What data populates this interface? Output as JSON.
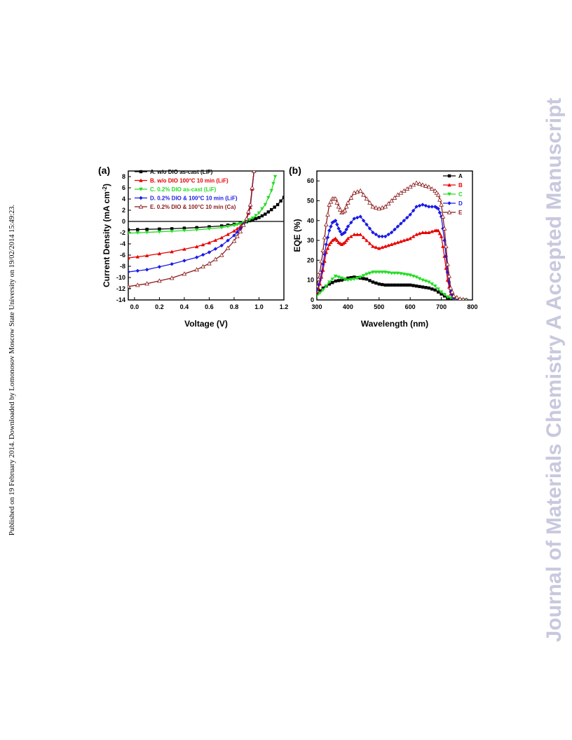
{
  "sidebar_left": "Published on 19 February 2014. Downloaded by Lomonosov Moscow State University on 19/02/2014 15:49:23.",
  "sidebar_right": "Journal of Materials Chemistry A Accepted Manuscript",
  "colors": {
    "A": "#000000",
    "B": "#e60000",
    "C": "#22dd22",
    "D": "#1a1ae6",
    "E": "#8b1a1a"
  },
  "chart_data": [
    {
      "panel_label": "(a)",
      "type": "line",
      "xlabel": "Voltage (V)",
      "ylabel": "Current Density (mA cm",
      "ylabel_sup": "-2",
      "ylabel_end": ")",
      "xlim": [
        -0.05,
        1.2
      ],
      "ylim": [
        -14,
        9
      ],
      "xticks": [
        "0.0",
        "0.2",
        "0.4",
        "0.6",
        "0.8",
        "1.0",
        "1.2"
      ],
      "xtick_values": [
        0,
        0.2,
        0.4,
        0.6,
        0.8,
        1.0,
        1.2
      ],
      "yticks": [
        "-14",
        "-12",
        "-10",
        "-8",
        "-6",
        "-4",
        "-2",
        "0",
        "2",
        "4",
        "6",
        "8"
      ],
      "ytick_values": [
        -14,
        -12,
        -10,
        -8,
        -6,
        -4,
        -2,
        0,
        2,
        4,
        6,
        8
      ],
      "legend_position": "top-right",
      "series": [
        {
          "name": "A. w/o DIO as-cast (LiF)",
          "key": "A",
          "x": [
            -0.05,
            0.1,
            0.3,
            0.5,
            0.7,
            0.8,
            0.9,
            0.95,
            1.0,
            1.05,
            1.1,
            1.15,
            1.2
          ],
          "y": [
            -1.5,
            -1.4,
            -1.3,
            -1.1,
            -0.8,
            -0.5,
            -0.05,
            0.3,
            0.7,
            1.3,
            2.1,
            3.0,
            4.3
          ]
        },
        {
          "name": "B. w/o DIO 100°C 10 min (LiF)",
          "key": "B",
          "x": [
            -0.05,
            0.1,
            0.3,
            0.5,
            0.6,
            0.7,
            0.8,
            0.85,
            0.9,
            0.93,
            0.96
          ],
          "y": [
            -6.5,
            -6.1,
            -5.4,
            -4.5,
            -3.8,
            -2.9,
            -1.7,
            -0.9,
            0.4,
            2.5,
            9
          ]
        },
        {
          "name": "C. 0.2% DIO as-cast (LiF)",
          "key": "C",
          "x": [
            -0.05,
            0.1,
            0.3,
            0.5,
            0.7,
            0.8,
            0.85,
            0.9,
            0.95,
            1.0,
            1.05,
            1.1,
            1.13
          ],
          "y": [
            -2.1,
            -1.95,
            -1.75,
            -1.5,
            -1.1,
            -0.7,
            -0.4,
            0.05,
            0.6,
            1.5,
            3.0,
            5.5,
            8.0
          ]
        },
        {
          "name": "D. 0.2% DIO & 100°C 10 min (LiF)",
          "key": "D",
          "x": [
            -0.05,
            0.1,
            0.3,
            0.5,
            0.6,
            0.7,
            0.8,
            0.85,
            0.9,
            0.93,
            0.96
          ],
          "y": [
            -9.0,
            -8.6,
            -7.6,
            -6.4,
            -5.5,
            -4.3,
            -2.5,
            -1.3,
            0.4,
            2.8,
            9
          ]
        },
        {
          "name": "E. 0.2% DIO & 100°C 10 min (Ca)",
          "key": "E",
          "x": [
            -0.05,
            0.1,
            0.3,
            0.5,
            0.6,
            0.7,
            0.8,
            0.85,
            0.9,
            0.93,
            0.96
          ],
          "y": [
            -11.6,
            -11.1,
            -10.1,
            -8.6,
            -7.5,
            -6.0,
            -3.5,
            -1.8,
            0.5,
            3.0,
            9
          ]
        }
      ]
    },
    {
      "panel_label": "(b)",
      "type": "line",
      "xlabel": "Wavelength (nm)",
      "ylabel": "EQE (%)",
      "xlim": [
        300,
        800
      ],
      "ylim": [
        0,
        65
      ],
      "xticks": [
        "300",
        "400",
        "500",
        "600",
        "700",
        "800"
      ],
      "xtick_values": [
        300,
        400,
        500,
        600,
        700,
        800
      ],
      "yticks": [
        "0",
        "10",
        "20",
        "30",
        "40",
        "50",
        "60"
      ],
      "ytick_values": [
        0,
        10,
        20,
        30,
        40,
        50,
        60
      ],
      "legend_position": "top-right",
      "series": [
        {
          "name": "A",
          "key": "A",
          "x": [
            300,
            320,
            340,
            360,
            380,
            400,
            420,
            440,
            460,
            480,
            500,
            520,
            540,
            560,
            580,
            600,
            620,
            640,
            660,
            680,
            700,
            720,
            740,
            760,
            780
          ],
          "y": [
            3,
            6,
            8,
            9.5,
            10,
            11,
            11.5,
            11,
            10.5,
            9,
            8,
            7.5,
            7.5,
            7.5,
            7.5,
            7.5,
            7,
            6.5,
            6,
            5,
            3,
            1,
            0.3,
            0.1,
            0
          ]
        },
        {
          "name": "B",
          "key": "B",
          "x": [
            300,
            310,
            320,
            330,
            340,
            350,
            360,
            370,
            380,
            390,
            400,
            420,
            440,
            460,
            480,
            500,
            520,
            540,
            560,
            580,
            600,
            620,
            640,
            660,
            680,
            690,
            700,
            710,
            720,
            730,
            740,
            760,
            780
          ],
          "y": [
            4,
            8,
            15,
            24,
            28,
            30,
            31,
            29,
            28,
            29,
            31,
            33,
            33,
            30,
            27,
            26,
            27,
            28,
            29,
            30,
            31,
            33,
            34,
            34,
            35,
            35,
            32,
            22,
            10,
            3,
            1,
            0.3,
            0
          ]
        },
        {
          "name": "C",
          "key": "C",
          "x": [
            300,
            320,
            340,
            360,
            380,
            400,
            420,
            440,
            460,
            480,
            500,
            520,
            540,
            560,
            580,
            600,
            620,
            640,
            660,
            680,
            700,
            720,
            740,
            760,
            780
          ],
          "y": [
            2,
            5,
            9,
            12,
            11,
            10,
            10.5,
            11.5,
            13,
            14,
            14,
            14,
            13.5,
            13.5,
            13,
            12.5,
            11.5,
            10,
            9,
            7,
            4,
            1.5,
            0.5,
            0.1,
            0
          ]
        },
        {
          "name": "D",
          "key": "D",
          "x": [
            300,
            310,
            320,
            330,
            340,
            350,
            360,
            370,
            380,
            390,
            400,
            420,
            440,
            460,
            480,
            500,
            520,
            540,
            560,
            580,
            600,
            620,
            640,
            660,
            680,
            690,
            700,
            710,
            720,
            730,
            740,
            760,
            780
          ],
          "y": [
            5,
            10,
            18,
            28,
            35,
            39,
            40,
            36,
            33,
            34,
            37,
            41,
            42,
            38,
            34,
            32,
            32,
            34,
            37,
            40,
            43,
            47,
            48,
            47,
            47,
            46,
            42,
            30,
            14,
            4,
            1,
            0.3,
            0
          ]
        },
        {
          "name": "E",
          "key": "E",
          "x": [
            300,
            310,
            320,
            330,
            340,
            350,
            360,
            370,
            380,
            390,
            400,
            420,
            440,
            460,
            480,
            500,
            520,
            540,
            560,
            580,
            600,
            620,
            640,
            660,
            680,
            690,
            700,
            710,
            720,
            730,
            740,
            760,
            780
          ],
          "y": [
            7,
            14,
            25,
            38,
            48,
            51,
            51,
            47,
            44,
            45,
            49,
            54,
            55,
            51,
            47,
            46,
            47,
            50,
            53,
            55,
            57,
            59,
            58,
            57,
            55,
            53,
            48,
            36,
            18,
            6,
            2,
            0.5,
            0
          ]
        }
      ]
    }
  ]
}
